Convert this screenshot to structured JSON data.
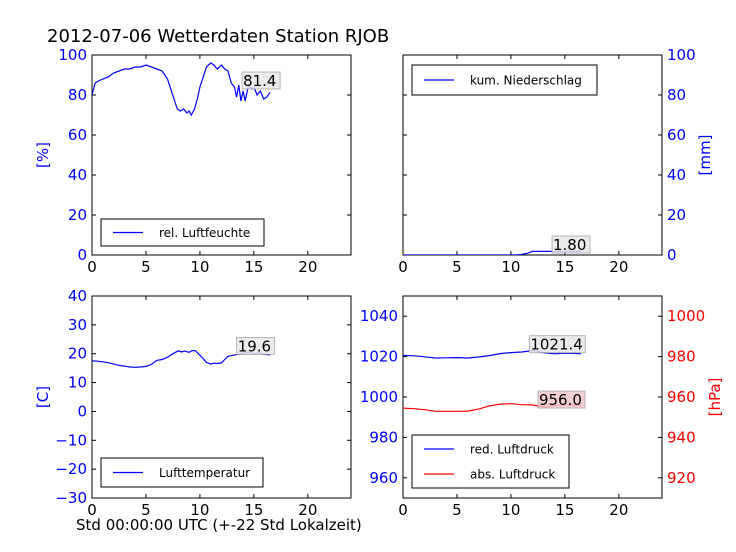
{
  "title": "2012-07-06 Wetterdaten Station RJOB",
  "xlabel": "Std 00:00:00 UTC (+-22 Std Lokalzeit)",
  "colors": {
    "blue": "#0000ff",
    "red": "#ff0000",
    "black": "#000000"
  },
  "chart_data": [
    {
      "type": "line",
      "panel": "top-left",
      "ylabel": "[%]",
      "ylabel_side": "left",
      "xlim": [
        0,
        24
      ],
      "ylim": [
        0,
        100
      ],
      "xticks": [
        "0",
        "5",
        "10",
        "15",
        "20"
      ],
      "yticks": [
        "0",
        "20",
        "40",
        "60",
        "80",
        "100"
      ],
      "legend_placement": "lower-center",
      "annotation": "81.4",
      "series": [
        {
          "name": "rel. Luftfeuchte",
          "color": "#0000ff",
          "x": [
            0,
            0.3,
            0.6,
            1.0,
            1.5,
            2.0,
            2.5,
            3.0,
            3.5,
            4.0,
            4.5,
            5.0,
            5.5,
            6.0,
            6.5,
            7.0,
            7.3,
            7.6,
            7.9,
            8.2,
            8.5,
            8.8,
            9.0,
            9.2,
            9.5,
            9.8,
            10.0,
            10.3,
            10.6,
            11.0,
            11.3,
            11.6,
            12.0,
            12.3,
            12.6,
            12.9,
            13.2,
            13.4,
            13.6,
            13.8,
            14.0,
            14.2,
            14.5,
            14.8,
            15.0,
            15.3,
            15.6,
            15.9,
            16.2,
            16.5
          ],
          "y": [
            80,
            86,
            87,
            88,
            89,
            91,
            92,
            93,
            93,
            94,
            94,
            95,
            94,
            93,
            92,
            88,
            83,
            78,
            73,
            72,
            73,
            71,
            72,
            70,
            73,
            79,
            84,
            89,
            94,
            96,
            95,
            93,
            95,
            93,
            92,
            86,
            84,
            79,
            85,
            77,
            82,
            77,
            85,
            83,
            84,
            80,
            82,
            78,
            79,
            81.4
          ]
        }
      ]
    },
    {
      "type": "line",
      "panel": "top-right",
      "ylabel": "[mm]",
      "ylabel_side": "right",
      "xlim": [
        0,
        24
      ],
      "ylim": [
        0,
        100
      ],
      "xticks": [
        "0",
        "5",
        "10",
        "15",
        "20"
      ],
      "yticks": [
        "0",
        "20",
        "40",
        "60",
        "80",
        "100"
      ],
      "legend_placement": "upper-center",
      "annotation": "1.80",
      "series": [
        {
          "name": "kum. Niederschlag",
          "color": "#0000ff",
          "x": [
            0,
            10.5,
            11.0,
            11.5,
            12.0,
            13.0,
            14.0,
            15.0,
            16.5
          ],
          "y": [
            0,
            0,
            0.3,
            0.8,
            1.8,
            1.8,
            1.8,
            1.8,
            1.8
          ]
        }
      ]
    },
    {
      "type": "line",
      "panel": "bottom-left",
      "ylabel": "[C]",
      "ylabel_side": "left",
      "xlim": [
        0,
        24
      ],
      "ylim": [
        -30,
        40
      ],
      "xticks": [
        "0",
        "5",
        "10",
        "15",
        "20"
      ],
      "yticks": [
        "−30",
        "−20",
        "−10",
        "0",
        "10",
        "20",
        "30",
        "40"
      ],
      "legend_placement": "lower-center",
      "annotation": "19.6",
      "series": [
        {
          "name": "Lufttemperatur",
          "color": "#0000ff",
          "x": [
            0,
            0.5,
            1.0,
            1.5,
            2.0,
            2.5,
            3.0,
            3.5,
            4.0,
            4.5,
            5.0,
            5.5,
            6.0,
            6.5,
            7.0,
            7.5,
            8.0,
            8.3,
            8.6,
            9.0,
            9.3,
            9.6,
            10.0,
            10.3,
            10.6,
            11.0,
            11.3,
            11.6,
            12.0,
            12.3,
            12.6,
            13.0,
            13.5,
            14.0,
            14.5,
            15.0,
            15.5,
            16.0,
            16.5
          ],
          "y": [
            17.5,
            17.4,
            17.2,
            16.9,
            16.4,
            16.0,
            15.7,
            15.4,
            15.3,
            15.4,
            15.6,
            16.3,
            17.7,
            18.0,
            18.8,
            20.0,
            21.0,
            20.6,
            20.9,
            20.5,
            21.1,
            21.0,
            19.5,
            18.3,
            17.0,
            16.4,
            16.7,
            16.6,
            16.8,
            18.0,
            19.1,
            19.4,
            19.8,
            20.1,
            20.5,
            20.0,
            20.3,
            19.8,
            19.6
          ]
        }
      ]
    },
    {
      "type": "line",
      "panel": "bottom-right",
      "ylabel": "[hPa]",
      "ylabel_side": "right",
      "xlim": [
        0,
        24
      ],
      "ylim_left": [
        950,
        1050
      ],
      "ylim_right": [
        910,
        1010
      ],
      "xticks": [
        "0",
        "5",
        "10",
        "15",
        "20"
      ],
      "yticks_left": [
        "960",
        "980",
        "1000",
        "1020",
        "1040"
      ],
      "yticks_right": [
        "920",
        "940",
        "960",
        "980",
        "1000"
      ],
      "legend_placement": "lower-center",
      "annotations": [
        "1021.4",
        "956.0"
      ],
      "series": [
        {
          "name": "red. Luftdruck",
          "color": "#0000ff",
          "axis": "left",
          "x": [
            0,
            1,
            2,
            3,
            4,
            5,
            6,
            7,
            8,
            9,
            10,
            11,
            12,
            13,
            14,
            15,
            16,
            16.5
          ],
          "y": [
            1020.6,
            1020.4,
            1019.9,
            1019.3,
            1019.4,
            1019.5,
            1019.3,
            1019.8,
            1020.5,
            1021.5,
            1022.0,
            1022.3,
            1023.0,
            1022.0,
            1021.4,
            1021.7,
            1021.6,
            1021.4
          ]
        },
        {
          "name": "abs. Luftdruck",
          "color": "#ff0000",
          "axis": "right",
          "x": [
            0,
            1,
            2,
            3,
            4,
            5,
            6,
            7,
            8,
            9,
            10,
            11,
            12,
            13,
            14,
            15,
            16,
            16.5
          ],
          "y": [
            954.5,
            954.2,
            953.7,
            952.9,
            952.9,
            952.9,
            953.0,
            954.0,
            955.6,
            956.5,
            956.7,
            956.2,
            956.1,
            955.0,
            955.7,
            956.2,
            956.0,
            956.0
          ]
        }
      ]
    }
  ]
}
